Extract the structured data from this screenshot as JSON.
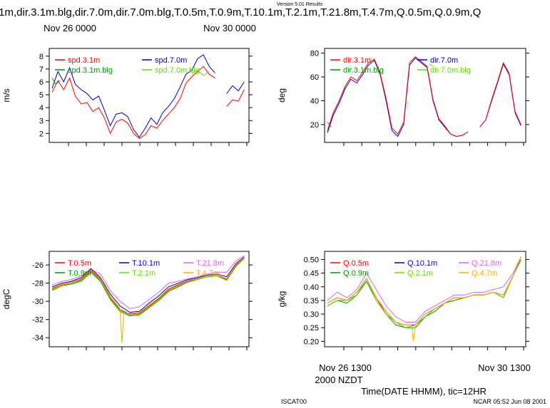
{
  "header": {
    "version": "Version 5.01 Results",
    "title": ".1m,dir.3.1m.blg,dir.7.0m,dir.7.0m.blg,T.0.5m,T.0.9m,T.10.1m,T.2.1m,T.21.8m,T.4.7m,Q.0.5m,Q.0.9m,Q",
    "top_date_left": "Nov 26 0000",
    "top_date_right": "Nov 30 0000"
  },
  "footer": {
    "bottom_date_left": "Nov 26 1300",
    "bottom_date_right": "Nov 30 1300",
    "tz_label": "2000 NZDT",
    "xaxis_label": "Time(DATE HHMM), tic=12HR",
    "station": "ISCAT00",
    "stamp": "NCAR 05:52 Jun 08 2001"
  },
  "colors": {
    "red": "#ff0000",
    "blue": "#0000cc",
    "green": "#009900",
    "lime": "#66dd00",
    "magenta": "#dd66dd",
    "orange": "#ffaa00"
  },
  "chart_data": [
    {
      "id": "spd",
      "type": "line",
      "ylabel": "m/s",
      "ylim": [
        1.3,
        8.6
      ],
      "yticks": [
        2,
        3,
        4,
        5,
        6,
        7,
        8
      ],
      "xlim": [
        0,
        100
      ],
      "legend": [
        {
          "label": "spd.3.1m",
          "color": "#ff0000"
        },
        {
          "label": "spd.7.0m",
          "color": "#0000cc"
        },
        {
          "label": "spd.3.1m.blg",
          "color": "#009900"
        },
        {
          "label": "spd.7.0m.blg",
          "color": "#66dd00"
        }
      ],
      "series": [
        {
          "name": "spd.7.0m",
          "color": "#0000cc",
          "x": [
            0,
            3,
            6,
            9,
            12,
            15,
            18,
            21,
            24,
            27,
            30,
            33,
            36,
            39,
            42,
            45,
            48,
            51,
            54,
            57,
            60,
            63,
            66,
            69,
            72,
            75,
            78,
            81,
            84,
            87,
            90,
            93,
            96,
            99
          ],
          "y": [
            5.5,
            6.8,
            6.0,
            7.1,
            5.8,
            5.4,
            5.1,
            4.6,
            4.9,
            3.8,
            2.6,
            3.5,
            3.6,
            3.3,
            2.3,
            1.7,
            2.4,
            3.2,
            2.7,
            3.6,
            4.1,
            4.7,
            5.6,
            6.6,
            6.9,
            7.8,
            8.1,
            7.2,
            6.7,
            null,
            5.1,
            5.7,
            5.3,
            6.0
          ]
        },
        {
          "name": "spd.3.1m",
          "color": "#ff0000",
          "x": [
            0,
            3,
            6,
            9,
            12,
            15,
            18,
            21,
            24,
            27,
            30,
            33,
            36,
            39,
            42,
            45,
            48,
            51,
            54,
            57,
            60,
            63,
            66,
            69,
            72,
            75,
            78,
            81,
            84,
            87,
            90,
            93,
            96,
            99
          ],
          "y": [
            5.2,
            6.1,
            5.4,
            6.3,
            4.9,
            4.3,
            4.4,
            3.7,
            4.0,
            3.2,
            2.0,
            2.9,
            3.1,
            2.8,
            2.0,
            1.6,
            1.9,
            2.6,
            2.4,
            3.0,
            3.5,
            4.0,
            4.7,
            5.9,
            6.4,
            6.8,
            7.2,
            6.6,
            6.3,
            null,
            4.1,
            4.6,
            4.5,
            5.4
          ]
        },
        {
          "name": "spd.3.1m.blg",
          "color": "#009900",
          "x": [
            0,
            2,
            4
          ],
          "y": [
            6.3,
            5.8,
            6.1
          ]
        },
        {
          "name": "spd.7.0m.blg",
          "color": "#66dd00",
          "x": [
            72,
            75,
            78,
            81
          ],
          "y": [
            6.6,
            6.9,
            6.5,
            6.8
          ]
        }
      ]
    },
    {
      "id": "dir",
      "type": "line",
      "ylabel": "deg",
      "ylim": [
        5,
        84
      ],
      "yticks": [
        20,
        40,
        60,
        80
      ],
      "xlim": [
        0,
        100
      ],
      "legend": [
        {
          "label": "dir.3.1m",
          "color": "#ff0000"
        },
        {
          "label": "dir.7.0m",
          "color": "#0000cc"
        },
        {
          "label": "dir.3.1m.blg",
          "color": "#009900"
        },
        {
          "label": "dir.7.0m.blg",
          "color": "#66dd00"
        }
      ],
      "series": [
        {
          "name": "dir.7.0m",
          "color": "#0000cc",
          "x": [
            0,
            3,
            6,
            9,
            12,
            15,
            18,
            21,
            24,
            27,
            30,
            33,
            36,
            39,
            42,
            45,
            48,
            51,
            54,
            57,
            60,
            63,
            66,
            69,
            72,
            75,
            78,
            81,
            84,
            87,
            90,
            93,
            96,
            99
          ],
          "y": [
            13,
            28,
            38,
            50,
            58,
            55,
            62,
            70,
            74,
            62,
            40,
            15,
            10,
            20,
            70,
            76,
            72,
            68,
            40,
            24,
            18,
            12,
            10,
            11,
            14,
            null,
            18,
            24,
            40,
            55,
            71,
            62,
            30,
            19
          ]
        },
        {
          "name": "dir.3.1m",
          "color": "#ff0000",
          "x": [
            0,
            3,
            6,
            9,
            12,
            15,
            18,
            21,
            24,
            27,
            30,
            33,
            36,
            39,
            42,
            45,
            48,
            51,
            54,
            57,
            60,
            63,
            66,
            69,
            72,
            75,
            78,
            81,
            84,
            87,
            90,
            93,
            96,
            99
          ],
          "y": [
            15,
            30,
            40,
            52,
            60,
            57,
            64,
            72,
            75,
            63,
            42,
            17,
            12,
            22,
            72,
            77,
            73,
            69,
            41,
            25,
            19,
            12,
            10,
            11,
            14,
            null,
            18,
            24,
            41,
            56,
            72,
            63,
            31,
            20
          ]
        },
        {
          "name": "dir.3.1m.blg",
          "color": "#009900",
          "x": [
            0,
            2
          ],
          "y": [
            22,
            18
          ]
        },
        {
          "name": "dir.7.0m.blg",
          "color": "#66dd00",
          "x": [
            52,
            54
          ],
          "y": [
            71,
            69
          ]
        }
      ]
    },
    {
      "id": "T",
      "type": "line",
      "ylabel": "degC",
      "ylim": [
        -35,
        -24.5
      ],
      "yticks": [
        -34,
        -32,
        -30,
        -28,
        -26
      ],
      "xlim": [
        0,
        100
      ],
      "legend": [
        {
          "label": "T.0.5m",
          "color": "#ff0000"
        },
        {
          "label": "T.10.1m",
          "color": "#0000cc"
        },
        {
          "label": "T.21.8m",
          "color": "#dd66dd"
        },
        {
          "label": "T.0.9m",
          "color": "#009900"
        },
        {
          "label": "T.2.1m",
          "color": "#66dd00"
        },
        {
          "label": "T.4.7m",
          "color": "#ffaa00"
        }
      ],
      "series": [
        {
          "name": "T.21.8m",
          "color": "#dd66dd",
          "x": [
            0,
            5,
            10,
            15,
            20,
            25,
            30,
            35,
            40,
            45,
            50,
            55,
            60,
            65,
            70,
            75,
            80,
            85,
            90,
            95,
            99
          ],
          "y": [
            -28.2,
            -27.8,
            -27.6,
            -27.2,
            -26.5,
            -27.0,
            -28.8,
            -30.0,
            -30.8,
            -30.6,
            -29.8,
            -29.0,
            -28.0,
            -27.8,
            -27.5,
            -27.3,
            -27.0,
            -26.8,
            -26.8,
            -25.5,
            -25.0
          ]
        },
        {
          "name": "T.10.1m",
          "color": "#0000cc",
          "x": [
            0,
            5,
            10,
            15,
            20,
            25,
            30,
            35,
            40,
            45,
            50,
            55,
            60,
            65,
            70,
            75,
            80,
            85,
            90,
            95,
            99
          ],
          "y": [
            -28.4,
            -28.0,
            -27.8,
            -27.4,
            -26.4,
            -27.4,
            -29.2,
            -30.5,
            -31.2,
            -31.1,
            -30.2,
            -29.4,
            -28.4,
            -28.0,
            -27.6,
            -27.4,
            -27.1,
            -27.0,
            -27.3,
            -25.8,
            -25.1
          ]
        },
        {
          "name": "T.0.5m",
          "color": "#ff0000",
          "x": [
            0,
            5,
            10,
            15,
            20,
            25,
            30,
            35,
            40,
            45,
            50,
            55,
            60,
            65,
            70,
            75,
            80,
            85,
            90,
            95,
            99
          ],
          "y": [
            -28.6,
            -28.2,
            -28.0,
            -27.6,
            -26.6,
            -27.6,
            -29.6,
            -30.9,
            -31.4,
            -31.3,
            -30.5,
            -29.7,
            -28.7,
            -28.2,
            -27.8,
            -27.5,
            -27.2,
            -27.1,
            -27.6,
            -26.0,
            -25.2
          ]
        },
        {
          "name": "T.0.9m",
          "color": "#009900",
          "x": [
            0,
            5,
            10,
            15,
            20,
            25,
            30,
            35,
            40,
            45,
            50,
            55,
            60,
            65,
            70,
            75,
            80,
            85,
            90,
            95,
            99
          ],
          "y": [
            -28.8,
            -28.3,
            -28.1,
            -27.8,
            -26.8,
            -27.8,
            -29.8,
            -31.1,
            -31.6,
            -31.5,
            -30.7,
            -29.9,
            -28.9,
            -28.4,
            -27.9,
            -27.6,
            -27.3,
            -27.2,
            -27.7,
            -26.1,
            -25.3
          ]
        },
        {
          "name": "T.2.1m",
          "color": "#66dd00",
          "x": [
            0,
            5,
            10,
            15,
            20,
            25,
            30,
            35,
            40,
            45,
            50,
            55,
            60,
            65,
            70,
            75,
            80,
            85,
            90,
            95,
            99
          ],
          "y": [
            -28.7,
            -28.3,
            -28.0,
            -27.7,
            -26.7,
            -27.7,
            -29.7,
            -31.0,
            -31.5,
            -31.4,
            -30.6,
            -29.8,
            -28.8,
            -28.3,
            -27.9,
            -27.6,
            -27.3,
            -27.2,
            -27.7,
            -26.1,
            -25.3
          ]
        },
        {
          "name": "T.4.7m",
          "color": "#ffaa00",
          "x": [
            0,
            5,
            10,
            15,
            20,
            25,
            30,
            35,
            36,
            37,
            40,
            45,
            50,
            55,
            60,
            65,
            70,
            75,
            80,
            85,
            90,
            95,
            99
          ],
          "y": [
            -28.5,
            -28.1,
            -27.9,
            -27.5,
            -26.5,
            -27.5,
            -29.4,
            -30.8,
            -34.6,
            -31.3,
            -31.3,
            -31.2,
            -30.4,
            -29.6,
            -28.6,
            -28.1,
            -27.7,
            -27.5,
            -27.2,
            -27.1,
            -27.5,
            -25.9,
            -25.2
          ]
        }
      ]
    },
    {
      "id": "Q",
      "type": "line",
      "ylabel": "g/kg",
      "ylim": [
        0.18,
        0.53
      ],
      "yticks": [
        0.2,
        0.25,
        0.3,
        0.35,
        0.4,
        0.45,
        0.5
      ],
      "xlim": [
        0,
        100
      ],
      "legend": [
        {
          "label": "Q.0.5m",
          "color": "#ff0000"
        },
        {
          "label": "Q.10.1m",
          "color": "#0000cc"
        },
        {
          "label": "Q.21.8m",
          "color": "#dd66dd"
        },
        {
          "label": "Q.0.9m",
          "color": "#009900"
        },
        {
          "label": "Q.2.1m",
          "color": "#66dd00"
        },
        {
          "label": "Q.4.7m",
          "color": "#ffaa00"
        }
      ],
      "series": [
        {
          "name": "Q.21.8m",
          "color": "#dd66dd",
          "x": [
            0,
            5,
            10,
            15,
            20,
            25,
            30,
            35,
            40,
            45,
            50,
            55,
            60,
            65,
            70,
            75,
            80,
            85,
            90,
            95,
            99
          ],
          "y": [
            0.35,
            0.38,
            0.36,
            0.39,
            0.45,
            0.39,
            0.33,
            0.29,
            0.27,
            0.27,
            0.31,
            0.33,
            0.35,
            0.37,
            0.37,
            0.38,
            0.38,
            0.39,
            0.4,
            0.45,
            0.51
          ]
        },
        {
          "name": "Q.10.1m",
          "color": "#0000cc",
          "x": [
            0,
            5,
            10,
            15,
            20,
            25,
            30,
            35,
            40,
            45,
            50,
            55,
            60,
            65,
            70,
            75,
            80,
            85,
            90,
            95,
            99
          ],
          "y": [
            0.34,
            0.36,
            0.35,
            0.38,
            0.43,
            0.36,
            0.31,
            0.27,
            0.26,
            0.26,
            0.3,
            0.32,
            0.34,
            0.36,
            0.36,
            0.37,
            0.37,
            0.38,
            0.37,
            0.44,
            0.51
          ]
        },
        {
          "name": "Q.0.5m",
          "color": "#ff0000",
          "x": [
            0,
            5,
            10,
            15,
            20,
            25,
            30,
            35,
            40,
            45,
            50,
            55,
            60,
            65,
            70,
            75,
            80,
            85,
            90,
            95,
            99
          ],
          "y": [
            0.33,
            0.35,
            0.35,
            0.37,
            0.43,
            0.36,
            0.3,
            0.27,
            0.25,
            0.26,
            0.29,
            0.32,
            0.34,
            0.36,
            0.36,
            0.37,
            0.37,
            0.38,
            0.36,
            0.44,
            0.51
          ]
        },
        {
          "name": "Q.0.9m",
          "color": "#009900",
          "x": [
            0,
            5,
            10,
            15,
            20,
            25,
            30,
            35,
            40,
            45,
            50,
            55,
            60,
            65,
            70,
            75,
            80,
            85,
            90,
            95,
            99
          ],
          "y": [
            0.33,
            0.35,
            0.34,
            0.37,
            0.42,
            0.35,
            0.3,
            0.26,
            0.25,
            0.25,
            0.29,
            0.31,
            0.34,
            0.35,
            0.36,
            0.37,
            0.37,
            0.38,
            0.36,
            0.44,
            0.5
          ]
        },
        {
          "name": "Q.2.1m",
          "color": "#66dd00",
          "x": [
            0,
            5,
            10,
            15,
            20,
            25,
            30,
            35,
            40,
            45,
            50,
            55,
            60,
            65,
            70,
            75,
            80,
            85,
            90,
            95,
            99
          ],
          "y": [
            0.33,
            0.35,
            0.35,
            0.37,
            0.43,
            0.35,
            0.3,
            0.27,
            0.25,
            0.26,
            0.29,
            0.32,
            0.34,
            0.36,
            0.36,
            0.37,
            0.37,
            0.38,
            0.36,
            0.44,
            0.51
          ]
        },
        {
          "name": "Q.4.7m",
          "color": "#ffaa00",
          "x": [
            0,
            5,
            10,
            15,
            20,
            25,
            30,
            35,
            40,
            43,
            44,
            45,
            50,
            55,
            60,
            65,
            70,
            75,
            80,
            85,
            90,
            95,
            99
          ],
          "y": [
            0.34,
            0.36,
            0.35,
            0.38,
            0.43,
            0.36,
            0.31,
            0.27,
            0.26,
            0.26,
            0.2,
            0.26,
            0.3,
            0.32,
            0.34,
            0.36,
            0.36,
            0.37,
            0.37,
            0.38,
            0.37,
            0.44,
            0.51
          ]
        }
      ]
    }
  ]
}
